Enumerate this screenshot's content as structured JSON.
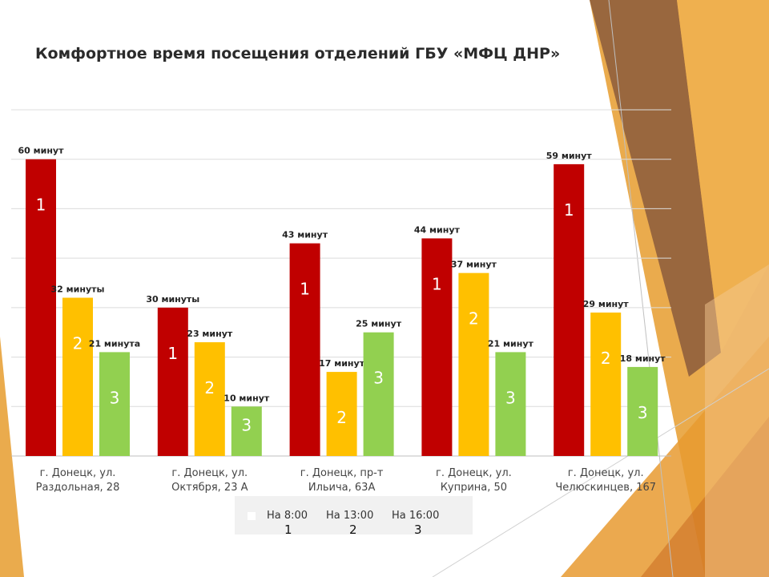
{
  "chart_data": {
    "type": "bar",
    "title": "Комфортное время посещения отделений ГБУ «МФЦ ДНР»",
    "categories": [
      [
        "г. Донецк, ул.",
        "Раздольная, 28"
      ],
      [
        "г. Донецк, ул.",
        "Октября, 23 А"
      ],
      [
        "г. Донецк, пр-т",
        "Ильича, 63А"
      ],
      [
        "г. Донецк, ул.",
        "Куприна, 50"
      ],
      [
        "г. Донецк, ул.",
        "Челюскинцев, 167"
      ]
    ],
    "series": [
      {
        "name": "На 8:00",
        "color": "#c00000",
        "values": [
          60,
          30,
          43,
          44,
          59
        ],
        "labels": [
          "60 минут",
          "30 минуты",
          "43 минут",
          "44 минут",
          "59 минут"
        ],
        "marks": [
          "1",
          "1",
          "1",
          "1",
          "1"
        ]
      },
      {
        "name": "На 13:00",
        "color": "#ffc000",
        "values": [
          32,
          23,
          17,
          37,
          29
        ],
        "labels": [
          "32 минуты",
          "23 минут",
          "17 минут",
          "37 минут",
          "29 минут"
        ],
        "marks": [
          "2",
          "2",
          "2",
          "2",
          "2"
        ]
      },
      {
        "name": "На 16:00",
        "color": "#92d050",
        "values": [
          21,
          10,
          25,
          21,
          18
        ],
        "labels": [
          "21 минута",
          "10 минут",
          "25 минут",
          "21 минут",
          "18 минут"
        ],
        "marks": [
          "3",
          "3",
          "3",
          "3",
          "3"
        ]
      }
    ],
    "ylim": [
      0,
      70
    ],
    "grid": true,
    "legend_position": "bottom",
    "legend_numbers": [
      "1",
      "2",
      "3"
    ]
  }
}
